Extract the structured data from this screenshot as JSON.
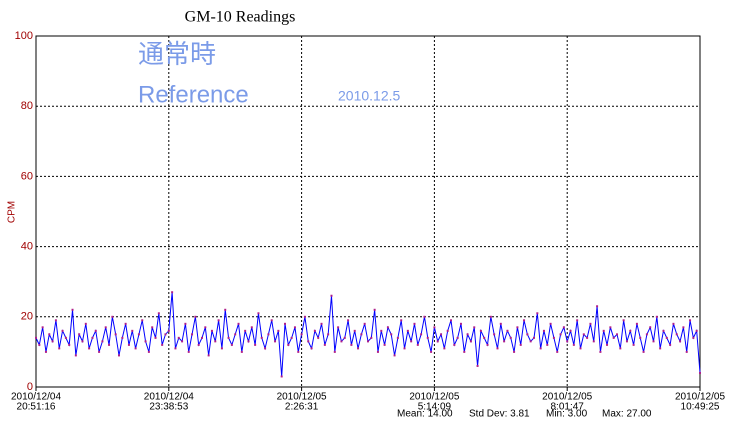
{
  "chart_data": {
    "type": "line",
    "title": "GM-10 Readings",
    "y_label": "CPM",
    "annotations": [
      "通常時",
      "Reference",
      "2010.12.5"
    ],
    "stats": [
      "Mean: 14.00",
      "Std Dev: 3.81",
      "Min: 3.00",
      "Max: 27.00"
    ],
    "ylim": [
      0,
      100
    ],
    "yticks": [
      0,
      20,
      40,
      60,
      80,
      100
    ],
    "xlim": [
      0,
      200
    ],
    "xticks": [
      {
        "value": 0,
        "label": "2010/12/04"
      },
      {
        "value": 40,
        "label": "2010/12/04"
      },
      {
        "value": 80,
        "label": "2010/12/05"
      },
      {
        "value": 120,
        "label": "2010/12/05"
      },
      {
        "value": 160,
        "label": "2010/12/05"
      },
      {
        "value": 200,
        "label": "2010/12/05"
      }
    ],
    "xtick_times": [
      "20:51:16",
      "23:38:53",
      "2:26:31",
      "5:14:09",
      "8:01:47",
      "10:49:25"
    ],
    "grid": true,
    "series": [
      {
        "name": "CPM",
        "color": "#0000ff",
        "marker_color": "#b0208a",
        "values": [
          14,
          12,
          17,
          10,
          15,
          13,
          19,
          11,
          16,
          14,
          12,
          22,
          9,
          15,
          13,
          18,
          11,
          14,
          16,
          10,
          13,
          17,
          12,
          20,
          15,
          9,
          14,
          18,
          12,
          16,
          11,
          15,
          19,
          13,
          10,
          17,
          14,
          21,
          12,
          15,
          16,
          27,
          11,
          14,
          13,
          18,
          10,
          15,
          20,
          12,
          14,
          17,
          9,
          16,
          13,
          19,
          11,
          22,
          14,
          12,
          15,
          18,
          10,
          16,
          13,
          17,
          12,
          21,
          14,
          11,
          15,
          19,
          13,
          16,
          3,
          18,
          12,
          14,
          17,
          10,
          15,
          20,
          13,
          11,
          16,
          14,
          18,
          12,
          15,
          26,
          10,
          17,
          13,
          14,
          19,
          12,
          16,
          11,
          15,
          18,
          13,
          14,
          22,
          10,
          16,
          12,
          17,
          15,
          9,
          14,
          19,
          11,
          16,
          13,
          18,
          12,
          15,
          20,
          14,
          10,
          17,
          13,
          15,
          11,
          16,
          19,
          12,
          14,
          18,
          10,
          15,
          13,
          17,
          6,
          16,
          14,
          12,
          20,
          15,
          11,
          18,
          13,
          16,
          14,
          10,
          17,
          12,
          19,
          15,
          13,
          14,
          21,
          11,
          16,
          12,
          18,
          14,
          10,
          15,
          17,
          13,
          16,
          12,
          19,
          11,
          15,
          14,
          18,
          13,
          23,
          10,
          16,
          12,
          17,
          14,
          15,
          11,
          19,
          13,
          16,
          12,
          18,
          14,
          10,
          15,
          17,
          13,
          20,
          11,
          16,
          14,
          12,
          18,
          15,
          13,
          17,
          10,
          19,
          14,
          16,
          4
        ]
      }
    ]
  }
}
